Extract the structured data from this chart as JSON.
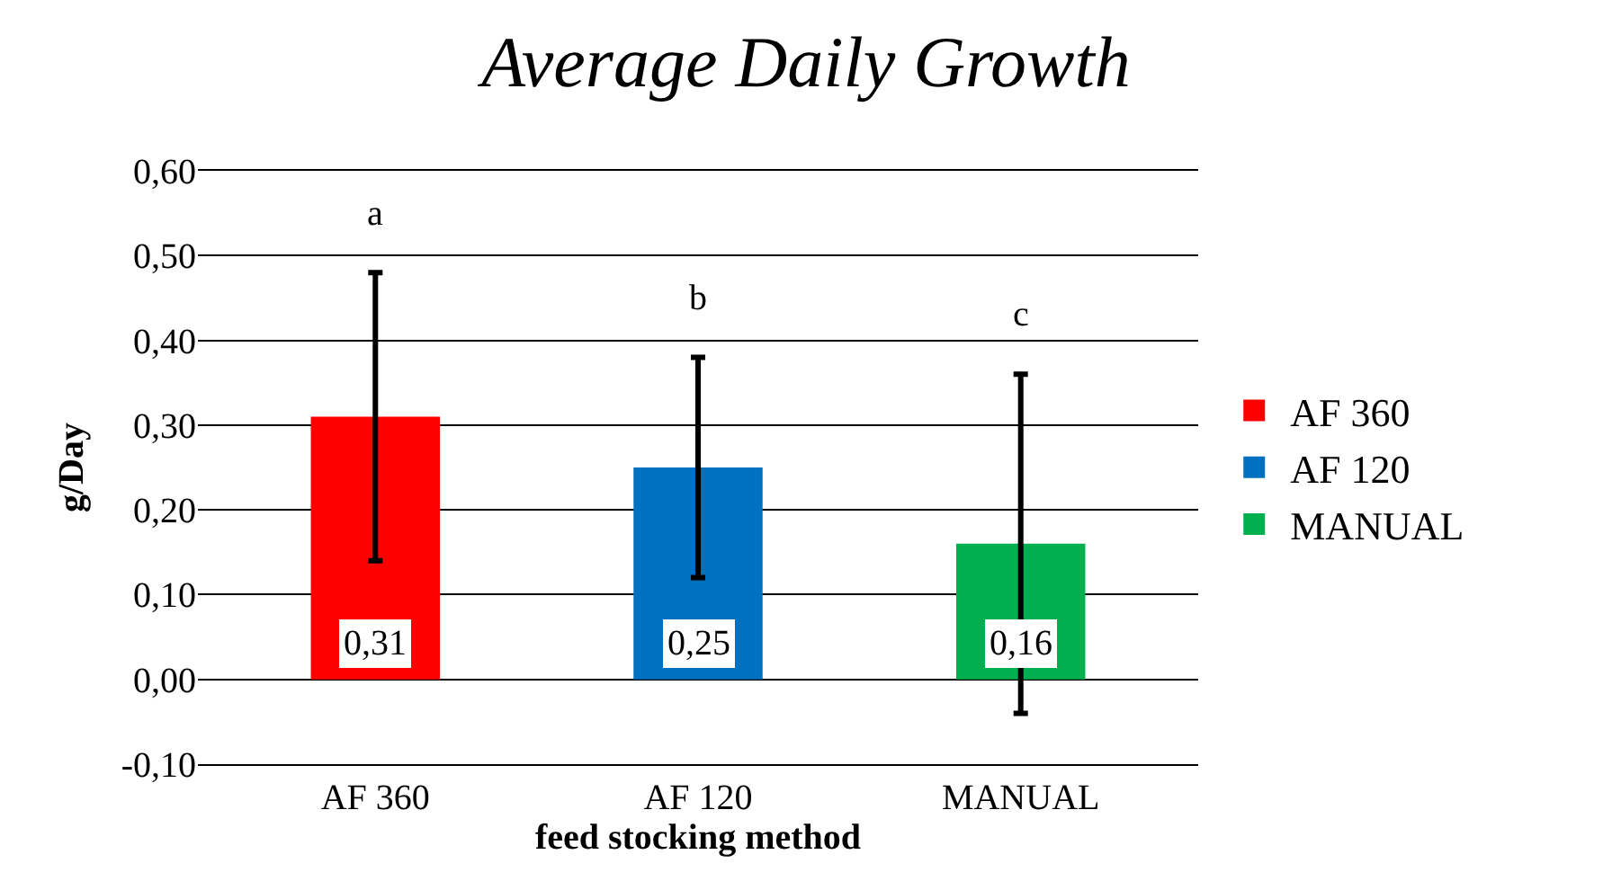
{
  "chart_data": {
    "type": "bar",
    "title": "Average Daily Growth",
    "xlabel": "feed stocking method",
    "ylabel": "g/Day",
    "categories": [
      "AF 360",
      "AF 120",
      "MANUAL"
    ],
    "series": [
      {
        "name": "AF 360",
        "color": "#ff0000",
        "values": [
          0.31,
          null,
          null
        ],
        "value_labels": [
          "0,31",
          null,
          null
        ],
        "errors": [
          [
            0.14,
            0.48
          ],
          null,
          null
        ]
      },
      {
        "name": "AF 120",
        "color": "#0070c0",
        "values": [
          null,
          0.25,
          null
        ],
        "value_labels": [
          null,
          "0,25",
          null
        ],
        "errors": [
          null,
          [
            0.12,
            0.38
          ],
          null
        ]
      },
      {
        "name": "MANUAL",
        "color": "#00b050",
        "values": [
          null,
          null,
          0.16
        ],
        "value_labels": [
          null,
          null,
          "0,16"
        ],
        "errors": [
          null,
          null,
          [
            -0.04,
            0.36
          ]
        ]
      }
    ],
    "ylim": [
      -0.1,
      0.6
    ],
    "yticks": [
      {
        "value": -0.1,
        "label": "-0,10"
      },
      {
        "value": 0,
        "label": "0,00"
      },
      {
        "value": 0.1,
        "label": "0,10"
      },
      {
        "value": 0.2,
        "label": "0,20"
      },
      {
        "value": 0.3,
        "label": "0,30"
      },
      {
        "value": 0.4,
        "label": "0,40"
      },
      {
        "value": 0.5,
        "label": "0,50"
      },
      {
        "value": 0.6,
        "label": "0,60"
      }
    ],
    "annotations": [
      "a",
      "b",
      "c"
    ],
    "grid": "y",
    "legend": "right"
  }
}
